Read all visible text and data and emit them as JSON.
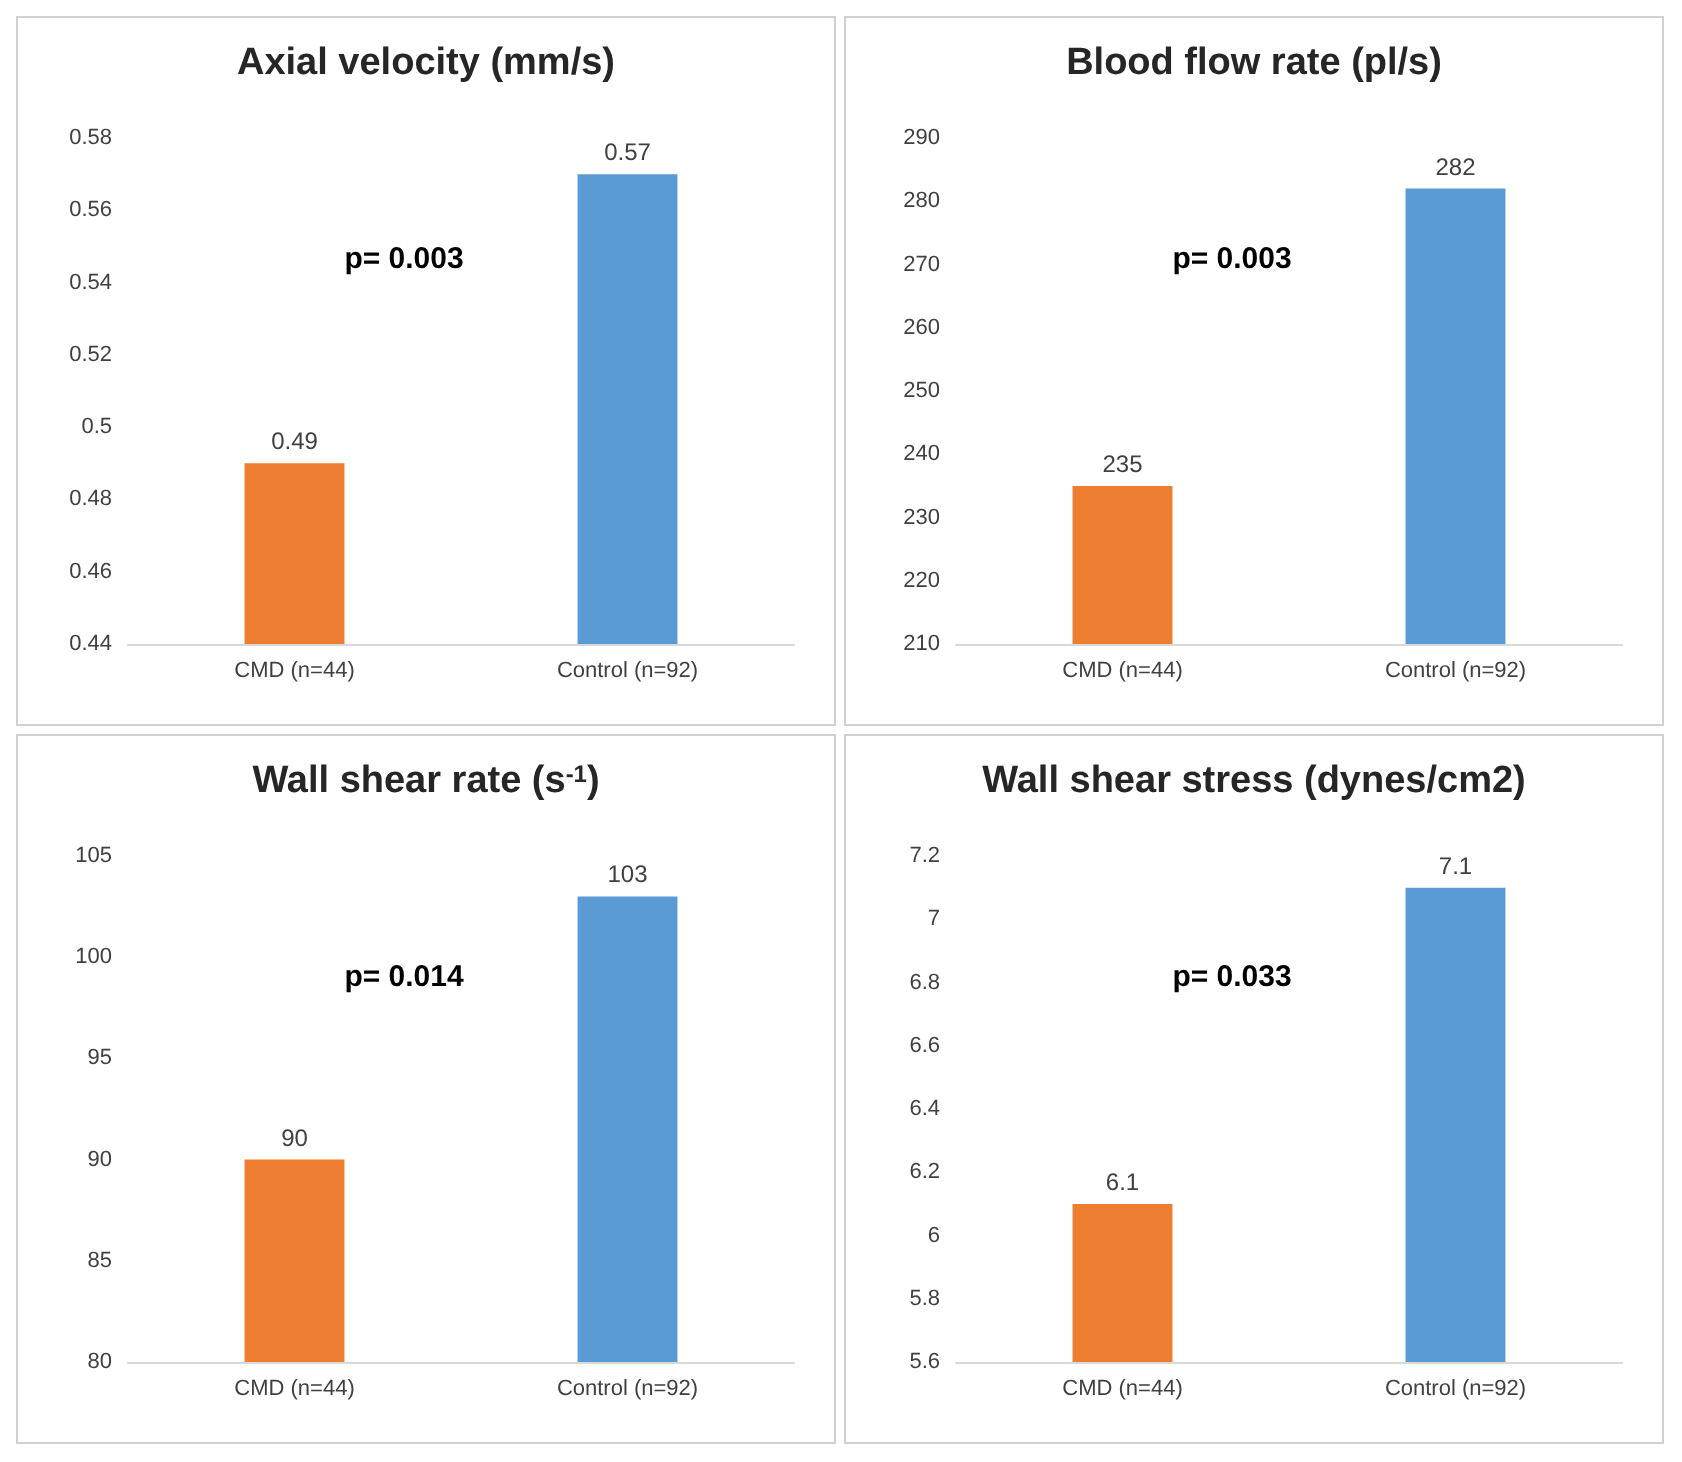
{
  "chart_data": [
    {
      "type": "bar",
      "title": "Axial velocity (mm/s)",
      "categories": [
        "CMD (n=44)",
        "Control (n=92)"
      ],
      "values": [
        0.49,
        0.57
      ],
      "colors": [
        "#ed7d31",
        "#5b9bd5"
      ],
      "ylim": [
        0.44,
        0.58
      ],
      "yticks": [
        0.44,
        0.46,
        0.48,
        0.5,
        0.52,
        0.54,
        0.56,
        0.58
      ],
      "data_labels": true,
      "grid": false,
      "annotations": [
        "p= 0.003"
      ]
    },
    {
      "type": "bar",
      "title": "Blood flow rate (pl/s)",
      "categories": [
        "CMD (n=44)",
        "Control (n=92)"
      ],
      "values": [
        235,
        282
      ],
      "colors": [
        "#ed7d31",
        "#5b9bd5"
      ],
      "ylim": [
        210,
        290
      ],
      "yticks": [
        210,
        220,
        230,
        240,
        250,
        260,
        270,
        280,
        290
      ],
      "data_labels": true,
      "grid": false,
      "annotations": [
        "p= 0.003"
      ]
    },
    {
      "type": "bar",
      "title": "Wall shear rate (s$^{-1}$)",
      "categories": [
        "CMD (n=44)",
        "Control (n=92)"
      ],
      "values": [
        90,
        103
      ],
      "colors": [
        "#ed7d31",
        "#5b9bd5"
      ],
      "ylim": [
        80,
        105
      ],
      "yticks": [
        80,
        85,
        90,
        95,
        100,
        105
      ],
      "data_labels": true,
      "grid": false,
      "annotations": [
        "p= 0.014"
      ]
    },
    {
      "type": "bar",
      "title": "Wall shear stress (dynes/cm2)",
      "categories": [
        "CMD (n=44)",
        "Control (n=92)"
      ],
      "values": [
        6.1,
        7.1
      ],
      "colors": [
        "#ed7d31",
        "#5b9bd5"
      ],
      "ylim": [
        5.6,
        7.2
      ],
      "yticks": [
        5.6,
        5.8,
        6,
        6.2,
        6.4,
        6.6,
        6.8,
        7,
        7.2
      ],
      "data_labels": true,
      "grid": false,
      "annotations": [
        "p= 0.033"
      ]
    }
  ]
}
